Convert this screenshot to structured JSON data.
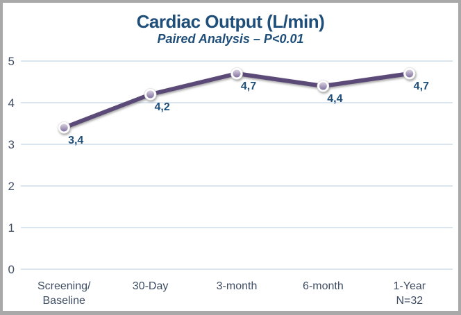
{
  "header": {
    "title": "Cardiac Output (L/min)",
    "subtitle": "Paired Analysis – P<0.01"
  },
  "chart_data": {
    "type": "line",
    "title": "Cardiac Output (L/min)",
    "subtitle": "Paired Analysis – P<0.01",
    "categories": [
      "Screening/\nBaseline",
      "30-Day",
      "3-month",
      "6-month",
      "1-Year\nN=32"
    ],
    "values": [
      3.4,
      4.2,
      4.7,
      4.4,
      4.7
    ],
    "data_labels": [
      "3,4",
      "4,2",
      "4,7",
      "4,4",
      "4,7"
    ],
    "series_name": "Cardiac Output",
    "xlabel": "",
    "ylabel": "",
    "ylim": [
      0,
      5
    ],
    "yticks": [
      0,
      1,
      2,
      3,
      4,
      5
    ],
    "grid": true,
    "legend": false,
    "colors": {
      "line": "#5B4A77",
      "marker_ring": "#FFFFFF",
      "marker_inner_top": "#D9D2E0",
      "marker_inner_bottom": "#8171A0",
      "grid": "#DBE5F0",
      "title_text": "#1F4E79",
      "tick_text": "#3F4D63",
      "data_label_text": "#1F4E79",
      "frame_border": "#A9A9A9"
    }
  }
}
